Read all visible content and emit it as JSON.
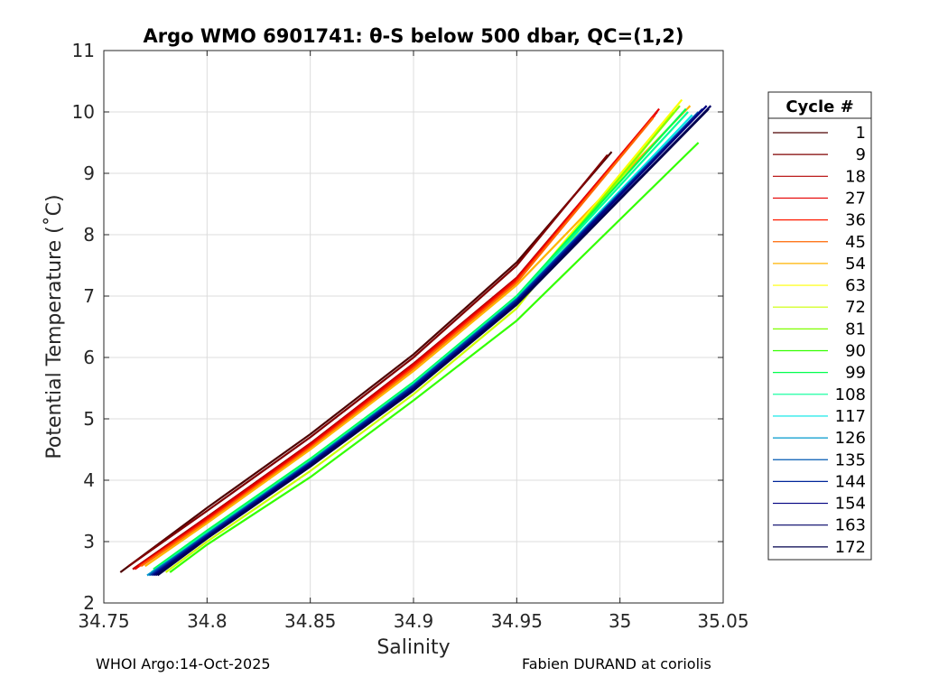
{
  "chart_data": {
    "type": "line",
    "title": "Argo WMO 6901741: θ-S below 500 dbar,  QC=(1,2)",
    "xlabel": "Salinity",
    "ylabel": "Potential Temperature (˚C)",
    "xlim": [
      34.75,
      35.05
    ],
    "ylim": [
      2,
      11
    ],
    "xticks": [
      34.75,
      34.8,
      34.85,
      34.9,
      34.95,
      35,
      35.05
    ],
    "xtick_labels": [
      "34.75",
      "34.8",
      "34.85",
      "34.9",
      "34.95",
      "35",
      "35.05"
    ],
    "yticks": [
      2,
      3,
      4,
      5,
      6,
      7,
      8,
      9,
      10,
      11
    ],
    "ytick_labels": [
      "2",
      "3",
      "4",
      "5",
      "6",
      "7",
      "8",
      "9",
      "10",
      "11"
    ],
    "grid": true,
    "legend_title": "Cycle #",
    "legend_position": "outside-right",
    "series": [
      {
        "name": "1",
        "color": "#4d0000",
        "x": [
          34.758,
          34.8,
          34.85,
          34.9,
          34.95,
          34.996
        ],
        "y": [
          2.5,
          3.55,
          4.75,
          6.05,
          7.55,
          9.35
        ]
      },
      {
        "name": "9",
        "color": "#800000",
        "x": [
          34.762,
          34.8,
          34.85,
          34.9,
          34.95,
          34.994
        ],
        "y": [
          2.6,
          3.5,
          4.7,
          6.0,
          7.5,
          9.3
        ]
      },
      {
        "name": "18",
        "color": "#b30000",
        "x": [
          34.764,
          34.8,
          34.85,
          34.9,
          34.95,
          35.018
        ],
        "y": [
          2.55,
          3.4,
          4.6,
          5.9,
          7.3,
          10.0
        ]
      },
      {
        "name": "27",
        "color": "#e60000",
        "x": [
          34.765,
          34.8,
          34.85,
          34.9,
          34.95,
          35.019
        ],
        "y": [
          2.55,
          3.38,
          4.58,
          5.88,
          7.28,
          10.05
        ]
      },
      {
        "name": "36",
        "color": "#ff1a00",
        "x": [
          34.767,
          34.8,
          34.85,
          34.9,
          34.95,
          35.017
        ],
        "y": [
          2.6,
          3.35,
          4.55,
          5.85,
          7.25,
          9.95
        ]
      },
      {
        "name": "45",
        "color": "#ff6600",
        "x": [
          34.768,
          34.8,
          34.85,
          34.9,
          34.95,
          35.016
        ],
        "y": [
          2.6,
          3.33,
          4.53,
          5.82,
          7.22,
          9.9
        ]
      },
      {
        "name": "54",
        "color": "#ffb300",
        "x": [
          34.77,
          34.8,
          34.85,
          34.9,
          34.95,
          35.034
        ],
        "y": [
          2.6,
          3.3,
          4.5,
          5.78,
          7.18,
          10.1
        ]
      },
      {
        "name": "63",
        "color": "#ffff00",
        "x": [
          34.775,
          34.8,
          34.85,
          34.9,
          34.95,
          35.03
        ],
        "y": [
          2.5,
          3.15,
          4.3,
          5.55,
          6.95,
          10.2
        ]
      },
      {
        "name": "72",
        "color": "#ccff00",
        "x": [
          34.78,
          34.8,
          34.85,
          34.9,
          34.95,
          35.026
        ],
        "y": [
          2.5,
          3.0,
          4.15,
          5.4,
          6.8,
          10.0
        ]
      },
      {
        "name": "81",
        "color": "#80ff00",
        "x": [
          34.776,
          34.8,
          34.85,
          34.9,
          34.95,
          35.029
        ],
        "y": [
          2.55,
          3.1,
          4.25,
          5.5,
          6.92,
          10.1
        ]
      },
      {
        "name": "90",
        "color": "#33ff00",
        "x": [
          34.782,
          34.8,
          34.85,
          34.9,
          34.95,
          35.038
        ],
        "y": [
          2.5,
          2.95,
          4.05,
          5.3,
          6.6,
          9.5
        ]
      },
      {
        "name": "99",
        "color": "#00ff4d",
        "x": [
          34.774,
          34.8,
          34.85,
          34.9,
          34.95,
          35.032
        ],
        "y": [
          2.55,
          3.18,
          4.35,
          5.6,
          7.0,
          10.05
        ]
      },
      {
        "name": "108",
        "color": "#00ff99",
        "x": [
          34.773,
          34.8,
          34.85,
          34.9,
          34.95,
          35.033
        ],
        "y": [
          2.5,
          3.15,
          4.32,
          5.58,
          6.98,
          10.0
        ]
      },
      {
        "name": "117",
        "color": "#00e6e6",
        "x": [
          34.772,
          34.8,
          34.85,
          34.9,
          34.95,
          35.035
        ],
        "y": [
          2.45,
          3.12,
          4.3,
          5.55,
          6.95,
          9.95
        ]
      },
      {
        "name": "126",
        "color": "#0099cc",
        "x": [
          34.771,
          34.8,
          34.85,
          34.9,
          34.95,
          35.036
        ],
        "y": [
          2.45,
          3.1,
          4.28,
          5.52,
          6.92,
          9.9
        ]
      },
      {
        "name": "135",
        "color": "#0059b3",
        "x": [
          34.772,
          34.8,
          34.85,
          34.9,
          34.95,
          35.038
        ],
        "y": [
          2.45,
          3.12,
          4.3,
          5.55,
          6.95,
          10.0
        ]
      },
      {
        "name": "144",
        "color": "#002699",
        "x": [
          34.773,
          34.8,
          34.85,
          34.9,
          34.95,
          35.04
        ],
        "y": [
          2.45,
          3.1,
          4.28,
          5.53,
          6.93,
          10.05
        ]
      },
      {
        "name": "154",
        "color": "#000080",
        "x": [
          34.774,
          34.8,
          34.85,
          34.9,
          34.95,
          35.042
        ],
        "y": [
          2.45,
          3.08,
          4.26,
          5.5,
          6.9,
          10.1
        ]
      },
      {
        "name": "163",
        "color": "#000066",
        "x": [
          34.775,
          34.8,
          34.85,
          34.9,
          34.95,
          35.044
        ],
        "y": [
          2.45,
          3.06,
          4.24,
          5.48,
          6.88,
          10.1
        ]
      },
      {
        "name": "172",
        "color": "#00004d",
        "x": [
          34.776,
          34.8,
          34.85,
          34.9,
          34.95,
          35.043
        ],
        "y": [
          2.45,
          3.05,
          4.22,
          5.46,
          6.86,
          10.05
        ]
      }
    ]
  },
  "footer": {
    "left": "WHOI Argo:14-Oct-2025",
    "right": "Fabien DURAND at coriolis"
  }
}
